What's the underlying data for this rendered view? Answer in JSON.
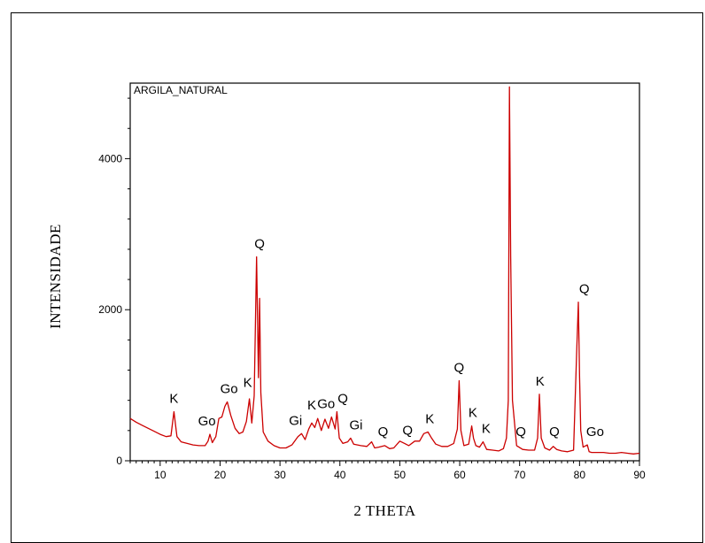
{
  "chart_data": {
    "type": "line",
    "title": "ARGILA_NATURAL",
    "xlabel": "2 THETA",
    "ylabel": "INTENSIDADE",
    "xlim": [
      5,
      90
    ],
    "ylim": [
      0,
      5000
    ],
    "xticks": [
      10,
      20,
      30,
      40,
      50,
      60,
      70,
      80,
      90
    ],
    "yticks": [
      0,
      2000,
      4000
    ],
    "grid": false,
    "line_color": "#cc0000",
    "series": [
      {
        "name": "",
        "x": [
          5,
          6,
          7,
          8,
          9,
          10,
          11,
          11.8,
          12.3,
          12.8,
          13.5,
          14.5,
          15.5,
          16.5,
          17.5,
          18.0,
          18.3,
          18.7,
          19.3,
          19.8,
          20.3,
          20.8,
          21.2,
          21.8,
          22.5,
          23.2,
          23.8,
          24.4,
          24.9,
          25.3,
          25.7,
          26.1,
          26.4,
          26.6,
          26.8,
          27.2,
          28,
          29,
          30,
          31,
          32,
          33,
          33.6,
          34.2,
          34.8,
          35.3,
          35.8,
          36.3,
          36.9,
          37.5,
          38.1,
          38.6,
          39.2,
          39.5,
          39.9,
          40.5,
          41.3,
          41.8,
          42.3,
          43.5,
          44.5,
          45.3,
          45.8,
          46.5,
          47.5,
          48.3,
          49,
          50,
          50.8,
          51.5,
          52.5,
          53.3,
          54.0,
          54.7,
          55.3,
          56,
          57,
          58,
          59,
          59.6,
          59.9,
          60.2,
          60.7,
          61.5,
          62.0,
          62.3,
          62.7,
          63.3,
          63.9,
          64.5,
          65.5,
          66.5,
          67.3,
          67.8,
          68.1,
          68.3,
          68.5,
          68.8,
          69.5,
          70.5,
          71.5,
          72.5,
          73.0,
          73.3,
          73.6,
          74.2,
          75,
          75.6,
          76.2,
          77,
          78,
          79,
          79.5,
          79.8,
          80.0,
          80.2,
          80.6,
          81.3,
          81.6,
          82,
          83,
          84,
          85,
          86,
          87,
          88,
          89,
          90
        ],
        "y": [
          560,
          510,
          470,
          430,
          390,
          350,
          320,
          330,
          650,
          320,
          250,
          230,
          210,
          200,
          200,
          260,
          350,
          240,
          320,
          560,
          580,
          720,
          780,
          600,
          430,
          360,
          380,
          520,
          820,
          500,
          860,
          2700,
          1100,
          2150,
          900,
          380,
          260,
          200,
          170,
          170,
          210,
          320,
          360,
          280,
          420,
          500,
          440,
          560,
          400,
          550,
          430,
          580,
          420,
          650,
          300,
          230,
          250,
          300,
          220,
          200,
          190,
          250,
          170,
          180,
          200,
          160,
          170,
          260,
          230,
          200,
          260,
          260,
          360,
          380,
          300,
          220,
          190,
          190,
          230,
          420,
          1060,
          400,
          200,
          220,
          460,
          300,
          200,
          180,
          250,
          150,
          140,
          130,
          160,
          300,
          800,
          4950,
          2700,
          800,
          200,
          150,
          140,
          140,
          300,
          880,
          300,
          170,
          140,
          190,
          150,
          130,
          120,
          140,
          1400,
          2100,
          1100,
          400,
          180,
          210,
          120,
          110,
          110,
          110,
          100,
          100,
          110,
          100,
          90,
          100
        ]
      }
    ],
    "annotations": [
      {
        "text": "K",
        "x": 12.3
      },
      {
        "text": "Go",
        "x": 17.8
      },
      {
        "text": "Go",
        "x": 21.5
      },
      {
        "text": "K",
        "x": 24.6
      },
      {
        "text": "Q",
        "x": 26.6
      },
      {
        "text": "Gi",
        "x": 32.6
      },
      {
        "text": "K",
        "x": 35.3
      },
      {
        "text": "Go",
        "x": 37.7
      },
      {
        "text": "Q",
        "x": 40.5
      },
      {
        "text": "Gi",
        "x": 42.7
      },
      {
        "text": "Q",
        "x": 47.2
      },
      {
        "text": "Q",
        "x": 51.3
      },
      {
        "text": "K",
        "x": 55.0
      },
      {
        "text": "Q",
        "x": 59.9
      },
      {
        "text": "K",
        "x": 62.2
      },
      {
        "text": "K",
        "x": 64.4
      },
      {
        "text": "Q",
        "x": 70.2
      },
      {
        "text": "K",
        "x": 73.4
      },
      {
        "text": "Q",
        "x": 75.8
      },
      {
        "text": "Q",
        "x": 80.8
      },
      {
        "text": "Go",
        "x": 82.6
      }
    ]
  }
}
